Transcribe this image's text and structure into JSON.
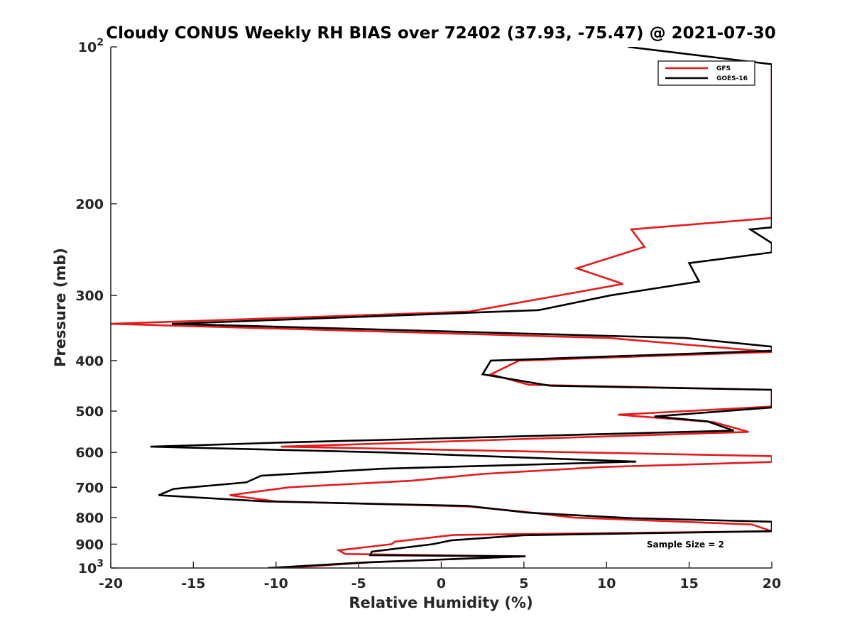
{
  "chart_data": {
    "type": "line",
    "title": "Cloudy CONUS Weekly RH BIAS over 72402 (37.93, -75.47) @ 2021-07-30",
    "xlabel": "Relative Humidity (%)",
    "ylabel": "Pressure (mb)",
    "xlim": [
      -20,
      20
    ],
    "ylim": [
      100,
      1000
    ],
    "y_scale": "log",
    "y_reversed": true,
    "x_ticks": [
      "-20",
      "-15",
      "-10",
      "-5",
      "0",
      "5",
      "10",
      "15",
      "20"
    ],
    "y_ticks": [
      {
        "value": 100,
        "base": "10",
        "exp": "2"
      },
      {
        "value": 200,
        "label": "200"
      },
      {
        "value": 300,
        "label": "300"
      },
      {
        "value": 400,
        "label": "400"
      },
      {
        "value": 500,
        "label": "500"
      },
      {
        "value": 600,
        "label": "600"
      },
      {
        "value": 700,
        "label": "700"
      },
      {
        "value": 800,
        "label": "800"
      },
      {
        "value": 900,
        "label": "900"
      },
      {
        "value": 1000,
        "base": "10",
        "exp": "3"
      }
    ],
    "grid": false,
    "legend_position": "top-right",
    "annotation": "Sample Size = 2",
    "series": [
      {
        "name": "GFS",
        "color": "#e41a1c",
        "points": [
          [
            -9.5,
            1000
          ],
          [
            -4.2,
            975
          ],
          [
            5.0,
            950
          ],
          [
            -5.8,
            940
          ],
          [
            -6.2,
            925
          ],
          [
            -3.0,
            900
          ],
          [
            -2.8,
            890
          ],
          [
            0.8,
            864
          ],
          [
            20.0,
            850
          ],
          [
            18.8,
            825
          ],
          [
            8.0,
            800
          ],
          [
            5.0,
            780
          ],
          [
            1.7,
            762
          ],
          [
            -10.0,
            745
          ],
          [
            -12.8,
            725
          ],
          [
            -9.2,
            700
          ],
          [
            -1.8,
            680
          ],
          [
            2.5,
            660
          ],
          [
            9.8,
            640
          ],
          [
            20.0,
            626
          ],
          [
            20.0,
            610
          ],
          [
            -9.7,
            585
          ],
          [
            18.6,
            548
          ],
          [
            16.5,
            525
          ],
          [
            10.7,
            508
          ],
          [
            20.0,
            490
          ],
          [
            20.0,
            455
          ],
          [
            5.3,
            445
          ],
          [
            3.0,
            425
          ],
          [
            4.7,
            400
          ],
          [
            20.0,
            385
          ],
          [
            10.2,
            362
          ],
          [
            -20.0,
            340
          ],
          [
            1.7,
            322
          ],
          [
            11.0,
            285
          ],
          [
            8.2,
            266
          ],
          [
            12.3,
            242
          ],
          [
            11.5,
            224
          ],
          [
            20.0,
            213
          ],
          [
            20.0,
            109
          ]
        ]
      },
      {
        "name": "GOES-16",
        "color": "#000000",
        "points": [
          [
            -10.5,
            1000
          ],
          [
            -4.4,
            975
          ],
          [
            5.1,
            950
          ],
          [
            -4.3,
            945
          ],
          [
            -4.2,
            930
          ],
          [
            -0.5,
            900
          ],
          [
            0.6,
            885
          ],
          [
            5.0,
            865
          ],
          [
            20.0,
            850
          ],
          [
            20.0,
            815
          ],
          [
            11.4,
            802
          ],
          [
            5.2,
            783
          ],
          [
            1.6,
            760
          ],
          [
            -10.7,
            745
          ],
          [
            -17.1,
            725
          ],
          [
            -16.2,
            705
          ],
          [
            -11.8,
            685
          ],
          [
            -10.9,
            665
          ],
          [
            -3.6,
            645
          ],
          [
            11.8,
            625
          ],
          [
            -3.5,
            600
          ],
          [
            -17.6,
            585
          ],
          [
            -10.1,
            575
          ],
          [
            17.7,
            545
          ],
          [
            16.1,
            523
          ],
          [
            12.9,
            512
          ],
          [
            20.0,
            492
          ],
          [
            20.0,
            455
          ],
          [
            6.6,
            447
          ],
          [
            2.5,
            425
          ],
          [
            3.0,
            400
          ],
          [
            20.0,
            383
          ],
          [
            20.0,
            376
          ],
          [
            14.8,
            362
          ],
          [
            -16.3,
            340
          ],
          [
            5.9,
            320
          ],
          [
            10.2,
            300
          ],
          [
            15.6,
            282
          ],
          [
            15.0,
            260
          ],
          [
            20.0,
            248
          ],
          [
            20.0,
            238
          ],
          [
            18.7,
            224
          ],
          [
            20.0,
            222
          ],
          [
            20.0,
            108
          ],
          [
            11.3,
            100
          ]
        ]
      }
    ]
  }
}
